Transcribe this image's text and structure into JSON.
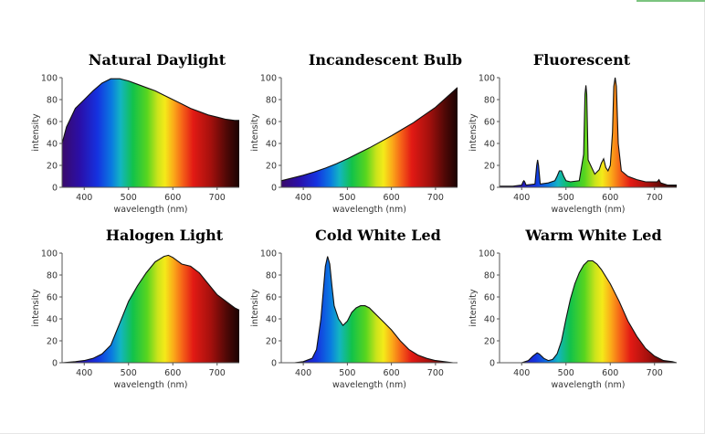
{
  "chart_data": [
    {
      "type": "area",
      "title": "Natural Daylight",
      "xlabel": "wavelength (nm)",
      "ylabel": "intensity",
      "xlim": [
        350,
        750
      ],
      "ylim": [
        0,
        100
      ],
      "xticks": [
        400,
        500,
        600,
        700
      ],
      "yticks": [
        0,
        20,
        40,
        60,
        80,
        100
      ],
      "x": [
        350,
        360,
        380,
        400,
        420,
        440,
        460,
        480,
        500,
        520,
        540,
        560,
        580,
        600,
        620,
        640,
        660,
        680,
        700,
        720,
        740,
        750
      ],
      "values": [
        40,
        55,
        72,
        80,
        88,
        95,
        99,
        99,
        97,
        94,
        91,
        88,
        84,
        80,
        76,
        72,
        69,
        66,
        64,
        62,
        61,
        61
      ]
    },
    {
      "type": "area",
      "title": "Incandescent Bulb",
      "xlabel": "wavelength (nm)",
      "ylabel": "intensity",
      "xlim": [
        350,
        750
      ],
      "ylim": [
        0,
        100
      ],
      "xticks": [
        400,
        500,
        600,
        700
      ],
      "yticks": [
        0,
        20,
        40,
        60,
        80,
        100
      ],
      "x": [
        350,
        375,
        400,
        425,
        450,
        475,
        500,
        525,
        550,
        575,
        600,
        625,
        650,
        675,
        700,
        725,
        750
      ],
      "values": [
        6,
        8.5,
        11,
        14,
        17.5,
        21.5,
        26,
        31,
        36,
        41.5,
        47,
        53,
        59,
        66,
        73,
        82,
        91
      ]
    },
    {
      "type": "area",
      "title": "Fluorescent",
      "xlabel": "wavelength (nm)",
      "ylabel": "intensity",
      "xlim": [
        350,
        750
      ],
      "ylim": [
        0,
        100
      ],
      "xticks": [
        400,
        500,
        600,
        700
      ],
      "yticks": [
        0,
        20,
        40,
        60,
        80,
        100
      ],
      "x": [
        350,
        380,
        400,
        403,
        405,
        407,
        410,
        430,
        434,
        436,
        438,
        442,
        460,
        475,
        480,
        485,
        490,
        495,
        500,
        510,
        530,
        540,
        543,
        545,
        547,
        550,
        565,
        575,
        580,
        585,
        590,
        595,
        600,
        605,
        608,
        611,
        614,
        618,
        625,
        640,
        660,
        680,
        700,
        706,
        710,
        714,
        730,
        750
      ],
      "values": [
        1,
        1,
        2,
        5,
        6,
        5,
        2,
        3,
        20,
        25,
        20,
        3,
        4,
        6,
        10,
        15,
        15,
        10,
        6,
        5,
        6,
        30,
        85,
        93,
        85,
        25,
        12,
        16,
        22,
        26,
        18,
        15,
        20,
        50,
        92,
        100,
        92,
        40,
        15,
        10,
        7,
        5,
        5,
        5,
        7,
        4,
        2,
        2
      ]
    },
    {
      "type": "area",
      "title": "Halogen Light",
      "xlabel": "wavelength (nm)",
      "ylabel": "intensity",
      "xlim": [
        350,
        750
      ],
      "ylim": [
        0,
        100
      ],
      "xticks": [
        400,
        500,
        600,
        700
      ],
      "yticks": [
        0,
        20,
        40,
        60,
        80,
        100
      ],
      "x": [
        350,
        380,
        400,
        420,
        440,
        460,
        480,
        500,
        520,
        540,
        560,
        580,
        590,
        600,
        620,
        640,
        660,
        680,
        700,
        720,
        740,
        750
      ],
      "values": [
        0,
        1,
        2,
        4,
        8,
        16,
        36,
        56,
        70,
        82,
        92,
        97,
        98,
        96,
        90,
        88,
        82,
        72,
        62,
        56,
        50,
        48
      ]
    },
    {
      "type": "area",
      "title": "Cold White Led",
      "xlabel": "wavelength (nm)",
      "ylabel": "intensity",
      "xlim": [
        350,
        750
      ],
      "ylim": [
        0,
        100
      ],
      "xticks": [
        400,
        500,
        600,
        700
      ],
      "yticks": [
        0,
        20,
        40,
        60,
        80,
        100
      ],
      "x": [
        350,
        380,
        400,
        420,
        430,
        440,
        450,
        455,
        460,
        465,
        470,
        480,
        490,
        500,
        510,
        520,
        530,
        540,
        550,
        560,
        580,
        600,
        620,
        640,
        660,
        680,
        700,
        720,
        740,
        750
      ],
      "values": [
        0,
        0,
        1,
        4,
        12,
        40,
        88,
        97,
        90,
        70,
        52,
        40,
        34,
        38,
        46,
        50,
        52,
        52,
        50,
        46,
        38,
        30,
        20,
        12,
        7,
        4,
        2,
        1,
        0,
        0
      ]
    },
    {
      "type": "area",
      "title": "Warm White Led",
      "xlabel": "wavelength (nm)",
      "ylabel": "intensity",
      "xlim": [
        350,
        750
      ],
      "ylim": [
        0,
        100
      ],
      "xticks": [
        400,
        500,
        600,
        700
      ],
      "yticks": [
        0,
        20,
        40,
        60,
        80,
        100
      ],
      "x": [
        350,
        380,
        400,
        415,
        425,
        435,
        440,
        450,
        460,
        470,
        480,
        490,
        500,
        510,
        520,
        530,
        540,
        550,
        560,
        570,
        580,
        600,
        620,
        640,
        660,
        680,
        700,
        720,
        740,
        750
      ],
      "values": [
        0,
        0,
        0,
        2,
        6,
        9,
        8,
        4,
        2,
        3,
        8,
        20,
        40,
        58,
        72,
        82,
        89,
        93,
        93,
        90,
        85,
        72,
        56,
        38,
        24,
        13,
        6,
        2,
        1,
        0
      ]
    }
  ]
}
